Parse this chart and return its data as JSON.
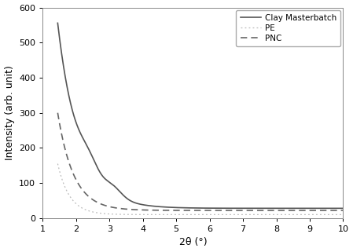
{
  "title": "",
  "xlabel": "2θ (°)",
  "ylabel": "Intensity (arb. unit)",
  "xlim": [
    1,
    10
  ],
  "ylim": [
    0,
    600
  ],
  "xticks": [
    1,
    2,
    3,
    4,
    5,
    6,
    7,
    8,
    9,
    10
  ],
  "yticks": [
    0,
    100,
    200,
    300,
    400,
    500,
    600
  ],
  "legend": [
    "Clay Masterbatch",
    "PE",
    "PNC"
  ],
  "clay_color": "#555555",
  "pe_color": "#bbbbbb",
  "pnc_color": "#666666",
  "clay_linewidth": 1.2,
  "pe_linewidth": 0.9,
  "pnc_linewidth": 1.2,
  "background_color": "#ffffff",
  "tick_labelsize": 8,
  "label_fontsize": 9,
  "legend_fontsize": 7.5
}
